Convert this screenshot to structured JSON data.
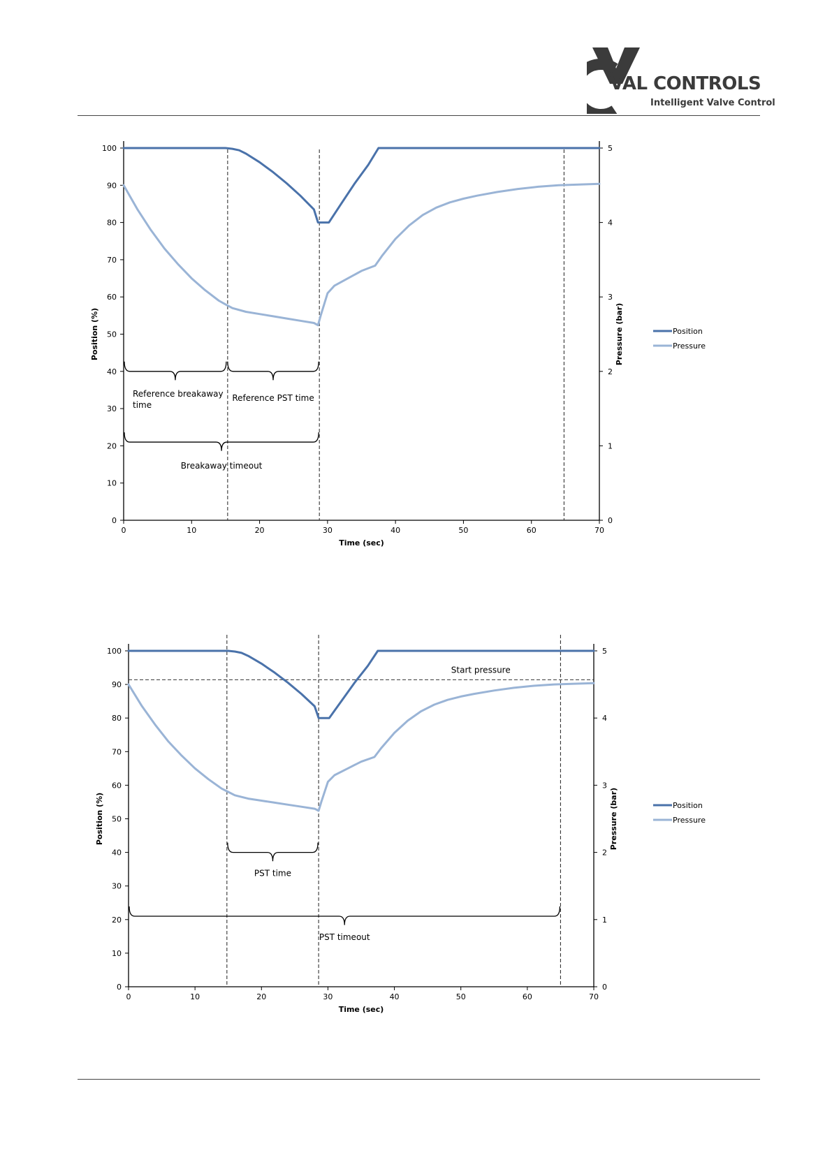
{
  "header": {
    "brand_name": "VAL CONTROLS",
    "brand_tagline": "Intelligent Valve Control",
    "logo_icon": "vc-logo-icon",
    "brand_color": "#3b3b3b"
  },
  "colors": {
    "position": "#4a72aa",
    "pressure": "#9ab4d6",
    "axis": "#000000",
    "guide": "#333333"
  },
  "chart_data": [
    {
      "type": "line",
      "xlabel": "Time (sec)",
      "ylabel": "Position (%)",
      "y2label": "Pressure (bar)",
      "xlim": [
        0,
        70
      ],
      "ylim": [
        0,
        100
      ],
      "y2lim": [
        0,
        5
      ],
      "x_ticks": [
        0,
        10,
        20,
        30,
        40,
        50,
        60,
        70
      ],
      "y_ticks": [
        0,
        10,
        20,
        30,
        40,
        50,
        60,
        70,
        80,
        90,
        100
      ],
      "y2_ticks": [
        0,
        1,
        2,
        3,
        4,
        5
      ],
      "legend_position": "right",
      "series": [
        {
          "name": "Position",
          "axis": "left",
          "x": [
            0,
            15,
            16,
            17,
            18,
            20,
            22,
            24,
            26,
            28,
            28.6,
            30.2,
            32,
            34,
            36,
            37.5,
            40,
            50,
            60,
            70
          ],
          "y": [
            100,
            100,
            99.8,
            99.4,
            98.5,
            96.2,
            93.5,
            90.5,
            87.2,
            83.5,
            80,
            80,
            85,
            90.5,
            95.5,
            100,
            100,
            100,
            100,
            100
          ]
        },
        {
          "name": "Pressure",
          "axis": "right",
          "x": [
            0,
            2,
            4,
            6,
            8,
            10,
            12,
            14,
            15,
            16,
            18,
            20,
            22,
            24,
            26,
            28,
            28.6,
            29,
            30,
            31,
            33,
            35,
            37,
            38,
            40,
            42,
            44,
            46,
            48,
            50,
            52,
            55,
            58,
            61,
            64,
            67,
            70
          ],
          "y": [
            4.5,
            4.18,
            3.9,
            3.65,
            3.44,
            3.25,
            3.09,
            2.95,
            2.9,
            2.85,
            2.8,
            2.77,
            2.74,
            2.71,
            2.68,
            2.65,
            2.62,
            2.75,
            3.05,
            3.15,
            3.25,
            3.35,
            3.42,
            3.55,
            3.78,
            3.96,
            4.1,
            4.2,
            4.27,
            4.32,
            4.36,
            4.41,
            4.45,
            4.48,
            4.5,
            4.51,
            4.52
          ]
        }
      ],
      "guide_lines_x": [
        15.3,
        28.8,
        64.8
      ],
      "brackets": [
        {
          "from": 0,
          "to": 15.2,
          "level": 40,
          "label": "Reference breakaway\ntime"
        },
        {
          "from": 15.2,
          "to": 28.8,
          "level": 40,
          "label": "Reference PST time"
        },
        {
          "from": 0,
          "to": 28.8,
          "level": 21,
          "label": "Breakaway timeout"
        }
      ]
    },
    {
      "type": "line",
      "xlabel": "Time (sec)",
      "ylabel": "Position (%)",
      "y2label": "Pressure (bar)",
      "xlim": [
        0,
        70
      ],
      "ylim": [
        0,
        100
      ],
      "y2lim": [
        0,
        5
      ],
      "x_ticks": [
        0,
        10,
        20,
        30,
        40,
        50,
        60,
        70
      ],
      "y_ticks": [
        0,
        10,
        20,
        30,
        40,
        50,
        60,
        70,
        80,
        90,
        100
      ],
      "y2_ticks": [
        0,
        1,
        2,
        3,
        4,
        5
      ],
      "legend_position": "right",
      "series": [
        {
          "name": "Position",
          "axis": "left",
          "x": [
            0,
            15,
            16,
            17,
            18,
            20,
            22,
            24,
            26,
            28,
            28.6,
            30.2,
            32,
            34,
            36,
            37.5,
            40,
            50,
            60,
            70
          ],
          "y": [
            100,
            100,
            99.8,
            99.4,
            98.5,
            96.2,
            93.5,
            90.5,
            87.2,
            83.5,
            80,
            80,
            85,
            90.5,
            95.5,
            100,
            100,
            100,
            100,
            100
          ]
        },
        {
          "name": "Pressure",
          "axis": "right",
          "x": [
            0,
            2,
            4,
            6,
            8,
            10,
            12,
            14,
            15,
            16,
            18,
            20,
            22,
            24,
            26,
            28,
            28.6,
            29,
            30,
            31,
            33,
            35,
            37,
            38,
            40,
            42,
            44,
            46,
            48,
            50,
            52,
            55,
            58,
            61,
            64,
            67,
            70
          ],
          "y": [
            4.5,
            4.18,
            3.9,
            3.65,
            3.44,
            3.25,
            3.09,
            2.95,
            2.9,
            2.85,
            2.8,
            2.77,
            2.74,
            2.71,
            2.68,
            2.65,
            2.62,
            2.75,
            3.05,
            3.15,
            3.25,
            3.35,
            3.42,
            3.55,
            3.78,
            3.96,
            4.1,
            4.2,
            4.27,
            4.32,
            4.36,
            4.41,
            4.45,
            4.48,
            4.5,
            4.51,
            4.52
          ]
        }
      ],
      "guide_lines_x": [
        14.8,
        28.6,
        65
      ],
      "start_pressure": {
        "value": 4.57,
        "label": "Start pressure"
      },
      "brackets": [
        {
          "from": 14.8,
          "to": 28.6,
          "level": 40,
          "label": "PST time"
        },
        {
          "from": 0,
          "to": 65,
          "level": 21,
          "label": "PST timeout"
        }
      ]
    }
  ]
}
